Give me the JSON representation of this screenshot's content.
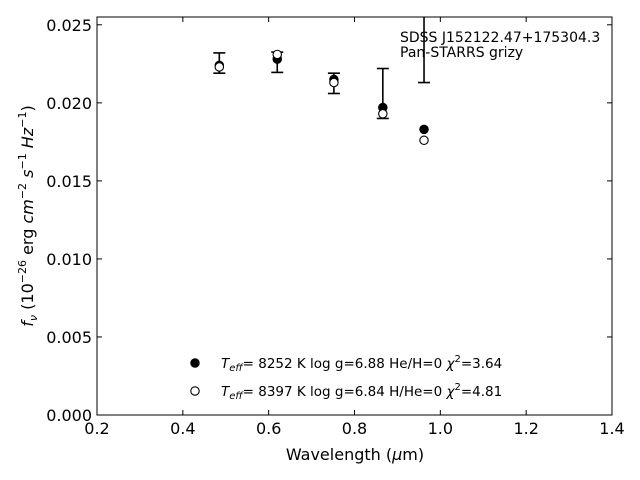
{
  "chart_data": {
    "type": "scatter",
    "annotation": {
      "line1": "SDSS J152122.47+175304.3",
      "line2": "Pan-STARRS grizy"
    },
    "xlabel": "Wavelength (μm)",
    "ylabel": "f_ν (10^-26 erg cm^-2 s^-1 Hz^-1)",
    "xlim": [
      0.2,
      1.4
    ],
    "ylim": [
      0.0,
      0.0255
    ],
    "xticks": [
      "0.2",
      "0.4",
      "0.6",
      "0.8",
      "1.0",
      "1.2",
      "1.4"
    ],
    "yticks": [
      "0.000",
      "0.005",
      "0.010",
      "0.015",
      "0.020",
      "0.025"
    ],
    "grid": false,
    "legend_position": "bottom-center",
    "observed": {
      "x": [
        0.485,
        0.62,
        0.752,
        0.866,
        0.962
      ],
      "y": [
        0.02255,
        0.0226,
        0.02125,
        0.0206,
        0.0235
      ],
      "yerr": [
        0.00065,
        0.00065,
        0.00065,
        0.0016,
        0.0022
      ]
    },
    "series": [
      {
        "name": "T_eff= 8252 K log g=6.88 He/H=0 χ²=3.64",
        "marker": "filled-circle",
        "x": [
          0.485,
          0.62,
          0.752,
          0.866,
          0.962
        ],
        "y": [
          0.0224,
          0.0228,
          0.0215,
          0.0197,
          0.0183
        ]
      },
      {
        "name": "T_eff= 8397 K log g=6.84 H/He=0 χ²=4.81",
        "marker": "open-circle",
        "x": [
          0.485,
          0.62,
          0.752,
          0.866,
          0.962
        ],
        "y": [
          0.0223,
          0.0231,
          0.0213,
          0.0193,
          0.0176
        ]
      }
    ],
    "legend": [
      {
        "teff": "8252 K",
        "logg": "log g=6.88",
        "comp": "He/H=0",
        "chi": "=3.64",
        "marker": "filled-circle"
      },
      {
        "teff": "8397 K",
        "logg": "log g=6.84",
        "comp": "H/He=0",
        "chi": "=4.81",
        "marker": "open-circle"
      }
    ]
  }
}
